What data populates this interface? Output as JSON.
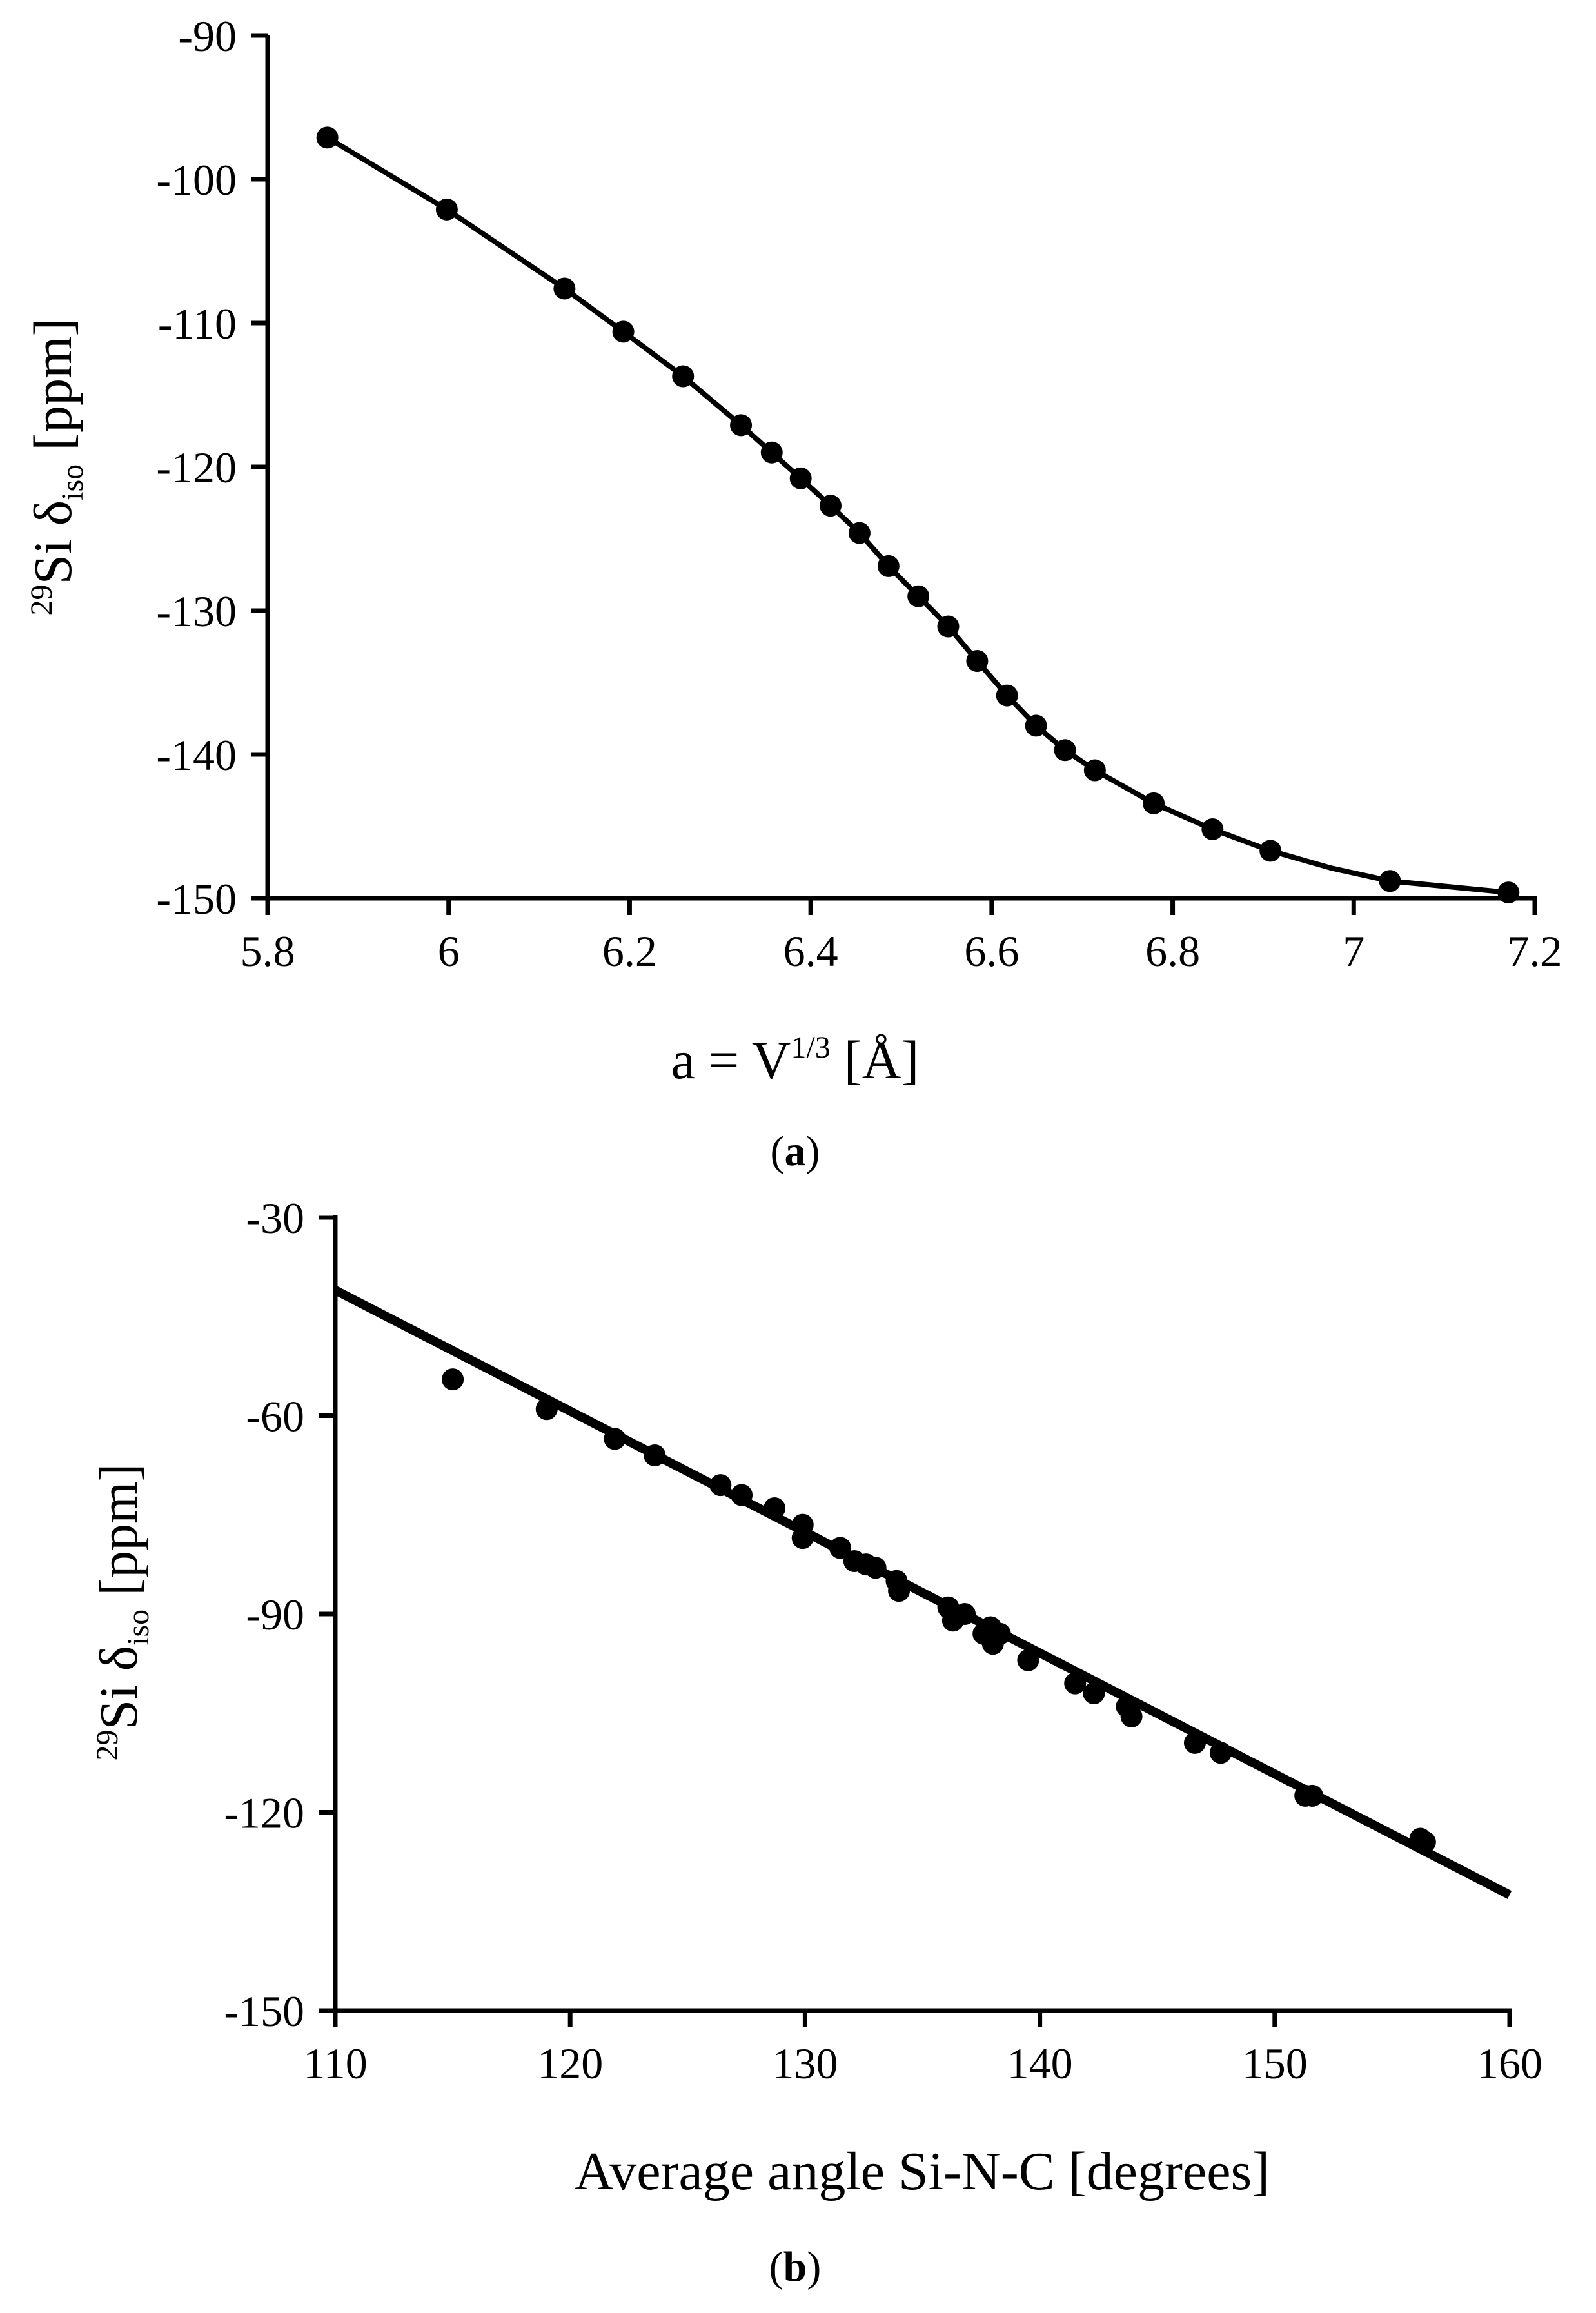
{
  "panels": [
    {
      "caption_open": "(",
      "caption_letter": "a",
      "caption_close": ")"
    },
    {
      "caption_open": "(",
      "caption_letter": "b",
      "caption_close": ")"
    }
  ],
  "chart_data": [
    {
      "type": "line",
      "ylabel_parts": {
        "sup": "29",
        "base": "Si δ",
        "sub": "iso",
        "unit": " [ppm]"
      },
      "xlabel_parts": {
        "pre": "a = V",
        "sup": "1/3",
        "post": " [Å]"
      },
      "xlim": [
        5.8,
        7.2
      ],
      "ylim": [
        -150,
        -90
      ],
      "xticks": [
        5.8,
        6.0,
        6.2,
        6.4,
        6.6,
        6.8,
        7.0,
        7.2
      ],
      "xtick_labels": [
        "5.8",
        "6",
        "6.2",
        "6.4",
        "6.6",
        "6.8",
        "7",
        "7.2"
      ],
      "yticks": [
        -90,
        -100,
        -110,
        -120,
        -130,
        -140,
        -150
      ],
      "ytick_labels": [
        "-90",
        "-100",
        "-110",
        "-120",
        "-130",
        "-140",
        "-150"
      ],
      "grid": false,
      "series": [
        {
          "style": "points",
          "x": [
            5.866,
            5.998,
            6.128,
            6.193,
            6.259,
            6.323,
            6.357,
            6.389,
            6.422,
            6.454,
            6.486,
            6.519,
            6.552,
            6.584,
            6.617,
            6.649,
            6.681,
            6.714,
            6.779,
            6.844,
            6.908,
            7.04,
            7.171
          ],
          "y": [
            -97.1,
            -102.1,
            -107.6,
            -110.6,
            -113.7,
            -117.1,
            -119.0,
            -120.8,
            -122.7,
            -124.6,
            -126.9,
            -129.0,
            -131.1,
            -133.5,
            -135.9,
            -138.0,
            -139.7,
            -141.1,
            -143.4,
            -145.2,
            -146.7,
            -148.8,
            -149.6
          ]
        },
        {
          "style": "curve",
          "x": [
            5.866,
            5.998,
            6.128,
            6.193,
            6.259,
            6.323,
            6.357,
            6.389,
            6.422,
            6.454,
            6.486,
            6.519,
            6.552,
            6.584,
            6.617,
            6.649,
            6.681,
            6.714,
            6.779,
            6.844,
            6.908,
            6.975,
            7.04,
            7.171
          ],
          "y": [
            -97.1,
            -102.1,
            -107.6,
            -110.6,
            -113.7,
            -117.1,
            -119.0,
            -120.8,
            -122.7,
            -124.6,
            -126.9,
            -129.0,
            -131.1,
            -133.5,
            -135.9,
            -138.0,
            -139.7,
            -141.1,
            -143.4,
            -145.2,
            -146.7,
            -147.9,
            -148.8,
            -149.6
          ]
        }
      ]
    },
    {
      "type": "scatter",
      "ylabel_parts": {
        "sup": "29",
        "base": "Si δ",
        "sub": "iso",
        "unit": " [ppm]"
      },
      "xlabel": "Average angle Si-N-C [degrees]",
      "xlim": [
        110,
        160
      ],
      "ylim": [
        -150,
        -30
      ],
      "xticks": [
        110,
        120,
        130,
        140,
        150,
        160
      ],
      "xtick_labels": [
        "110",
        "120",
        "130",
        "140",
        "150",
        "160"
      ],
      "yticks": [
        -30,
        -60,
        -90,
        -120,
        -150
      ],
      "ytick_labels": [
        "-30",
        "-60",
        "-90",
        "-120",
        "-150"
      ],
      "grid": false,
      "series": [
        {
          "style": "points",
          "x": [
            115.0,
            119.0,
            121.9,
            123.6,
            126.4,
            127.3,
            128.7,
            129.9,
            129.9,
            131.5,
            132.1,
            132.6,
            133.0,
            133.9,
            134.0,
            136.1,
            136.3,
            136.8,
            137.6,
            137.9,
            138.0,
            138.3,
            139.5,
            141.5,
            142.3,
            143.7,
            143.9,
            146.6,
            147.7,
            151.3,
            151.6,
            156.2,
            156.4
          ],
          "y": [
            -54.5,
            -59.0,
            -63.5,
            -66.0,
            -70.5,
            -72.0,
            -74.0,
            -76.5,
            -78.5,
            -80.0,
            -82.0,
            -82.5,
            -83.0,
            -85.0,
            -86.5,
            -89.0,
            -91.0,
            -90.0,
            -93.0,
            -92.0,
            -94.5,
            -93.0,
            -97.0,
            -100.5,
            -102.0,
            -104.0,
            -105.5,
            -109.5,
            -111.0,
            -117.5,
            -117.5,
            -124.0,
            -124.5
          ]
        },
        {
          "style": "fit-line",
          "x": [
            110,
            160
          ],
          "y": [
            -41.0,
            -132.5
          ]
        }
      ]
    }
  ]
}
